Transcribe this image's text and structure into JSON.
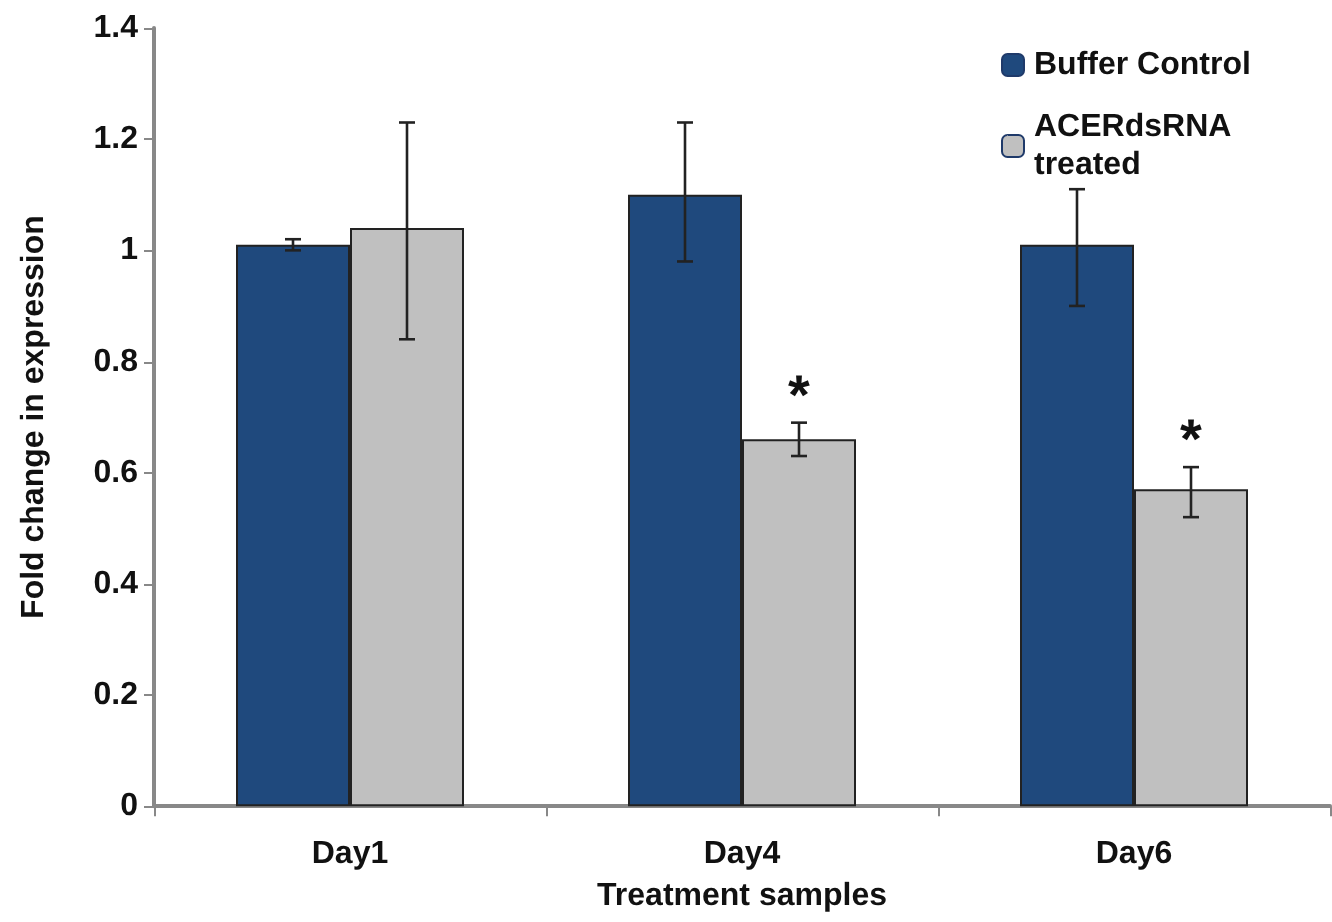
{
  "chart_data": {
    "type": "bar",
    "xlabel": "Treatment samples",
    "ylabel": "Fold change in expression",
    "categories": [
      "Day1",
      "Day4",
      "Day6"
    ],
    "series": [
      {
        "name": "Buffer Control",
        "color": "#1f497d",
        "values": [
          1.01,
          1.1,
          1.01
        ],
        "errors": [
          [
            1.0,
            1.02
          ],
          [
            0.98,
            1.23
          ],
          [
            0.9,
            1.11
          ]
        ]
      },
      {
        "name": "ACERdsRNA treated",
        "color": "#c0c0c0",
        "values": [
          1.04,
          0.66,
          0.57
        ],
        "errors": [
          [
            0.84,
            1.23
          ],
          [
            0.63,
            0.69
          ],
          [
            0.52,
            0.61
          ]
        ]
      }
    ],
    "ylim": [
      0,
      1.4
    ],
    "yticks": [
      0,
      0.2,
      0.4,
      0.6,
      0.8,
      1,
      1.2,
      1.4
    ],
    "grid": false,
    "legend": "top right",
    "annotations": [
      {
        "text": "*",
        "x": "Day4",
        "y": 0.74
      },
      {
        "text": "*",
        "x": "Day6",
        "y": 0.66
      }
    ]
  }
}
